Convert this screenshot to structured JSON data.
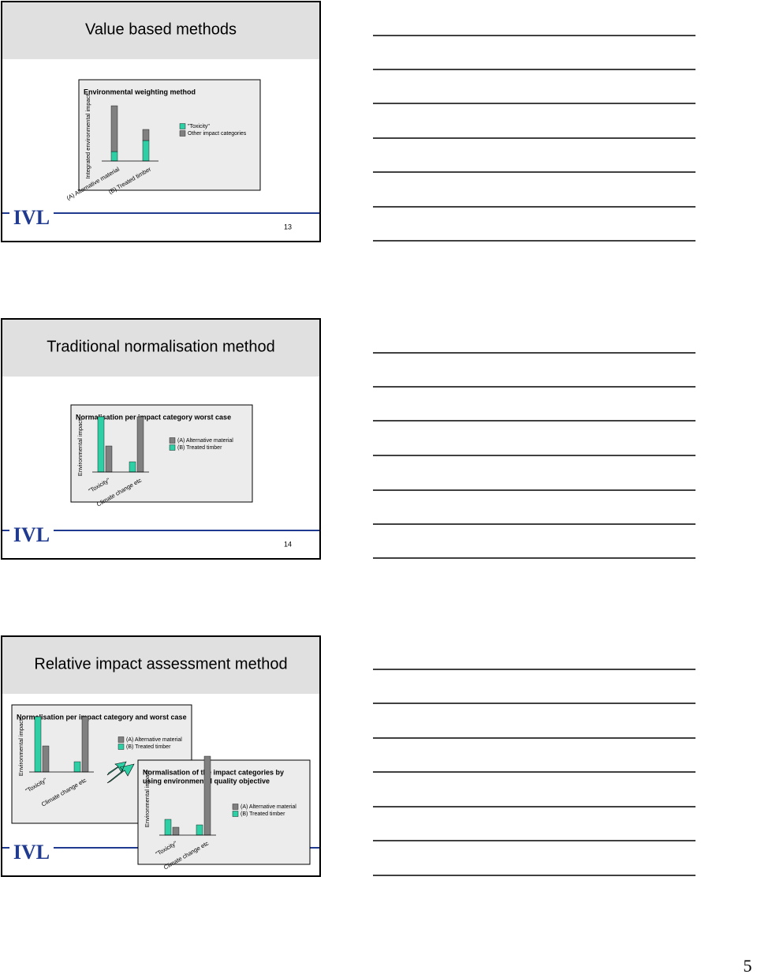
{
  "slides": [
    {
      "title": "Value based methods",
      "logo": "IVL",
      "number": "13",
      "chart": {
        "type": "stacked_bar",
        "title": [
          "Environmental weighting method"
        ],
        "y_label": "Integrated environmental impact",
        "categories": [
          "(A) Alternative material",
          "(B) Treated timber"
        ],
        "series": [
          {
            "name": "\"Toxicity\"",
            "color": "#2ecfa5",
            "values": [
              12,
              26
            ]
          },
          {
            "name": "Other impact categories",
            "color": "#808080",
            "values": [
              58,
              14
            ]
          }
        ]
      }
    },
    {
      "title": "Traditional normalisation method",
      "logo": "IVL",
      "number": "14",
      "chart": {
        "type": "bar",
        "title": [
          "Normalisation per impact category worst case"
        ],
        "y_label": "Environmental impact",
        "categories": [
          "\"Toxicity\"",
          "Climate change etc"
        ],
        "series": [
          {
            "name": "(A) Alternative material",
            "color": "#808080",
            "values": [
              33,
              70
            ]
          },
          {
            "name": "(B) Treated timber",
            "color": "#2ecfa5",
            "values": [
              70,
              13
            ]
          }
        ]
      }
    },
    {
      "title": "Relative impact assessment method",
      "logo": "IVL",
      "chart": {
        "type": "bar",
        "title": [
          "Normalisation per impact category and worst  case"
        ],
        "y_label": "Environmental impact",
        "categories": [
          "\"Toxicity\"",
          "Climate change etc"
        ],
        "series": [
          {
            "name": "(A) Alternative material",
            "color": "#808080",
            "values": [
              33,
              70
            ]
          },
          {
            "name": "(B) Treated timber",
            "color": "#2ecfa5",
            "values": [
              70,
              13
            ]
          }
        ]
      },
      "chart2": {
        "type": "bar",
        "title": [
          "Normalisation of the impact categories by",
          "using environmental quality objective"
        ],
        "y_label": "Environmental impact",
        "categories": [
          "\"Toxicity\"",
          "Climate change etc"
        ],
        "series": [
          {
            "name": "(A) Alternative material",
            "color": "#808080",
            "values": [
              10,
              100
            ]
          },
          {
            "name": "(B) Treated timber",
            "color": "#2ecfa5",
            "values": [
              20,
              13
            ]
          }
        ]
      }
    }
  ],
  "page_number": "5"
}
